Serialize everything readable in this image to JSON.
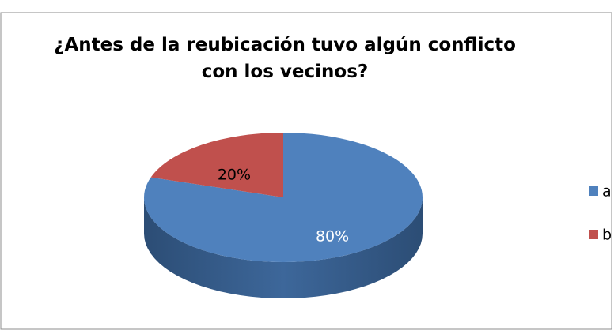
{
  "chart_data": {
    "type": "pie",
    "title": "¿Antes de la reubicación tuvo algún conflicto con los vecinos?",
    "categories": [
      "a",
      "b"
    ],
    "values": [
      80,
      20
    ],
    "value_labels": [
      "80%",
      "20%"
    ],
    "colors": [
      "#4f81bd",
      "#c0504d"
    ],
    "legend": "right"
  }
}
